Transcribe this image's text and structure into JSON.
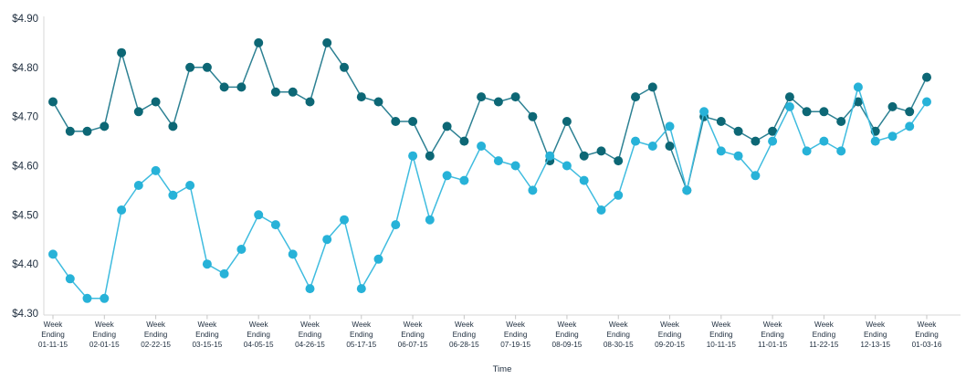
{
  "chart_data": {
    "type": "line",
    "title": "",
    "xlabel": "Time",
    "ylabel": "",
    "ylim": [
      4.3,
      4.9
    ],
    "grid": false,
    "legend": "none",
    "n_points": 52,
    "label_every": 3,
    "x_tick_line1": "Week",
    "x_tick_line2": "Ending",
    "categories": [
      "01-11-15",
      "02-01-15",
      "02-22-15",
      "03-15-15",
      "04-05-15",
      "04-26-15",
      "05-17-15",
      "06-07-15",
      "06-28-15",
      "07-19-15",
      "08-09-15",
      "08-30-15",
      "09-20-15",
      "10-11-15",
      "11-01-15",
      "11-22-15",
      "12-13-15",
      "01-03-16"
    ],
    "y_ticks": [
      {
        "value": 4.9,
        "label": "$4.90"
      },
      {
        "value": 4.8,
        "label": "$4.80"
      },
      {
        "value": 4.7,
        "label": "$4.70"
      },
      {
        "value": 4.6,
        "label": "$4.60"
      },
      {
        "value": 4.5,
        "label": "$4.50"
      },
      {
        "value": 4.4,
        "label": "$4.40"
      },
      {
        "value": 4.3,
        "label": "$4.30"
      }
    ],
    "series": [
      {
        "name": "dark-teal-series",
        "marker_color": "#0d6775",
        "line_color": "#2d8193",
        "values": [
          4.73,
          4.67,
          4.67,
          4.68,
          4.83,
          4.71,
          4.73,
          4.68,
          4.8,
          4.8,
          4.76,
          4.76,
          4.85,
          4.75,
          4.75,
          4.73,
          4.85,
          4.8,
          4.74,
          4.73,
          4.69,
          4.69,
          4.62,
          4.68,
          4.65,
          4.74,
          4.73,
          4.74,
          4.7,
          4.61,
          4.69,
          4.62,
          4.63,
          4.61,
          4.74,
          4.76,
          4.64,
          4.55,
          4.7,
          4.69,
          4.67,
          4.65,
          4.67,
          4.74,
          4.71,
          4.71,
          4.69,
          4.73,
          4.67,
          4.72,
          4.71,
          4.78
        ]
      },
      {
        "name": "light-blue-series",
        "marker_color": "#27b2d8",
        "line_color": "#3fbcdf",
        "values": [
          4.42,
          4.37,
          4.33,
          4.33,
          4.51,
          4.56,
          4.59,
          4.54,
          4.56,
          4.4,
          4.38,
          4.43,
          4.5,
          4.48,
          4.42,
          4.35,
          4.45,
          4.49,
          4.35,
          4.41,
          4.48,
          4.62,
          4.49,
          4.58,
          4.57,
          4.64,
          4.61,
          4.6,
          4.55,
          4.62,
          4.6,
          4.57,
          4.51,
          4.54,
          4.65,
          4.64,
          4.68,
          4.55,
          4.71,
          4.63,
          4.62,
          4.58,
          4.65,
          4.72,
          4.63,
          4.65,
          4.63,
          4.76,
          4.65,
          4.66,
          4.68,
          4.73
        ]
      }
    ],
    "colors": {
      "axis_line": "#d7d7d7",
      "tick_mark": "#c6c6c6",
      "label_text": "#1e2d3e"
    }
  }
}
